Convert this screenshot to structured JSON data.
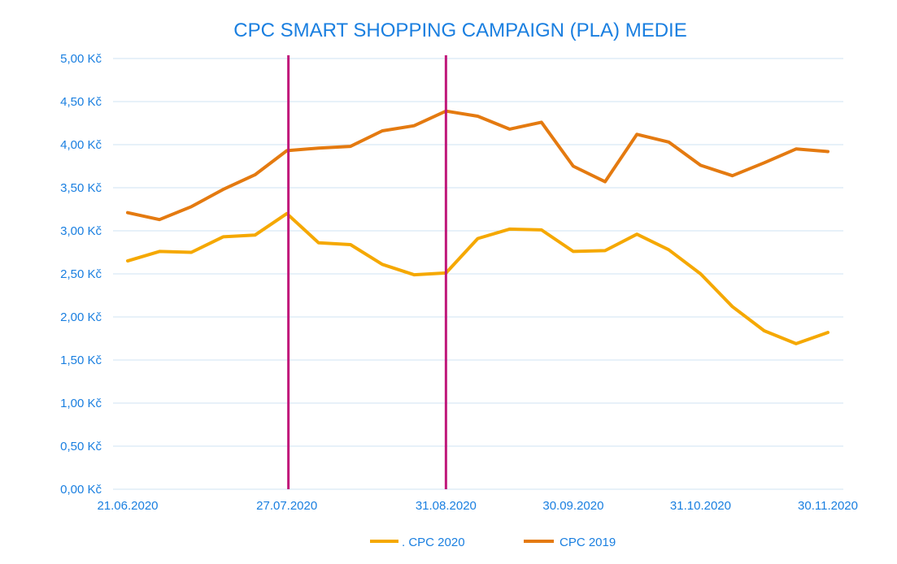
{
  "colors": {
    "text": "#1a7fe0",
    "grid": "#cfe3f3",
    "series_2020": "#f5a800",
    "series_2019": "#e47a10",
    "marker_line": "#c0187a"
  },
  "chart_data": {
    "type": "line",
    "title": "CPC SMART SHOPPING CAMPAIGN (PLA) MEDIE",
    "xlabel": "",
    "ylabel": "",
    "ylim": [
      0,
      5
    ],
    "y_ticks": [
      {
        "value": 0,
        "label": "0,00 Kč"
      },
      {
        "value": 0.5,
        "label": "0,50 Kč"
      },
      {
        "value": 1,
        "label": "1,00 Kč"
      },
      {
        "value": 1.5,
        "label": "1,50 Kč"
      },
      {
        "value": 2,
        "label": "2,00 Kč"
      },
      {
        "value": 2.5,
        "label": "2,50 Kč"
      },
      {
        "value": 3,
        "label": "3,00 Kč"
      },
      {
        "value": 3.5,
        "label": "3,50 Kč"
      },
      {
        "value": 4,
        "label": "4,00 Kč"
      },
      {
        "value": 4.5,
        "label": "4,50 Kč"
      },
      {
        "value": 5,
        "label": "5,00 Kč"
      }
    ],
    "x_tick_labels": [
      {
        "index": 0,
        "label": "21.06.2020"
      },
      {
        "index": 5,
        "label": "27.07.2020"
      },
      {
        "index": 10,
        "label": "31.08.2020"
      },
      {
        "index": 14,
        "label": "30.09.2020"
      },
      {
        "index": 18,
        "label": "31.10.2020"
      },
      {
        "index": 22,
        "label": "30.11.2020"
      }
    ],
    "point_count": 23,
    "vertical_markers": [
      5.05,
      10.0
    ],
    "grid": true,
    "legend_position": "bottom",
    "series": [
      {
        "name": ". CPC 2020",
        "color_key": "series_2020",
        "values": [
          2.65,
          2.76,
          2.75,
          2.93,
          2.95,
          3.2,
          2.86,
          2.84,
          2.61,
          2.49,
          2.51,
          2.91,
          3.02,
          3.01,
          2.76,
          2.77,
          2.96,
          2.78,
          2.5,
          2.12,
          1.84,
          1.69,
          1.82
        ]
      },
      {
        "name": "CPC 2019",
        "color_key": "series_2019",
        "values": [
          3.21,
          3.13,
          3.28,
          3.48,
          3.65,
          3.93,
          3.96,
          3.98,
          4.16,
          4.22,
          4.39,
          4.33,
          4.18,
          4.26,
          3.75,
          3.57,
          4.12,
          4.03,
          3.76,
          3.64,
          3.79,
          3.95,
          3.92
        ]
      }
    ]
  }
}
